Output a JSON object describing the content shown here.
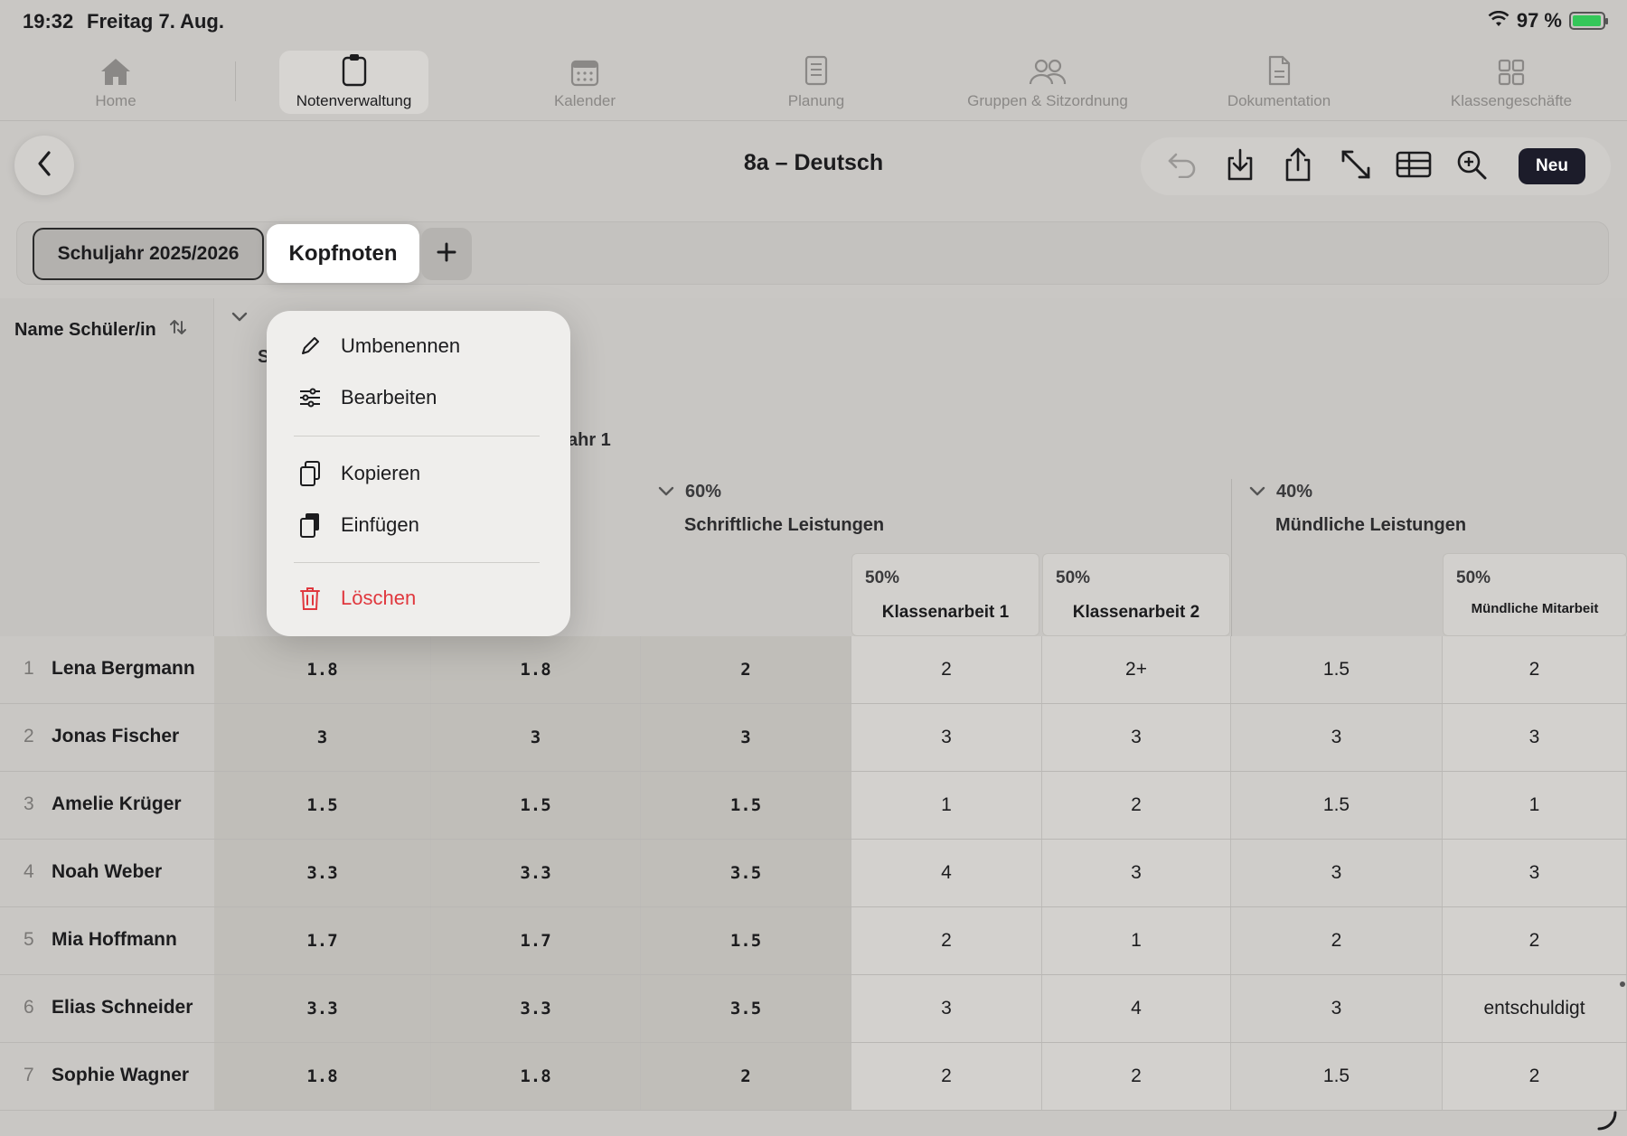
{
  "status": {
    "time": "19:32",
    "date": "Freitag 7. Aug.",
    "battery": "97 %",
    "battery_level": 0.97
  },
  "nav": {
    "items": [
      {
        "label": "Home",
        "icon": "house-icon"
      },
      {
        "label": "Notenverwaltung",
        "icon": "clipboard-icon"
      },
      {
        "label": "Kalender",
        "icon": "calendar-icon"
      },
      {
        "label": "Planung",
        "icon": "document-list-icon"
      },
      {
        "label": "Gruppen & Sitzordnung",
        "icon": "people-icon"
      },
      {
        "label": "Dokumentation",
        "icon": "document-icon"
      },
      {
        "label": "Klassengeschäfte",
        "icon": "grid-icon"
      }
    ],
    "active": "Notenverwaltung"
  },
  "header": {
    "title": "8a – Deutsch",
    "new_label": "Neu"
  },
  "tabs": {
    "year": "Schuljahr 2025/2026",
    "active": "Kopfnoten",
    "add": "+"
  },
  "grid": {
    "name_header": "Name Schüler/in",
    "partial_text": "ahr 1",
    "partial_letter": "S",
    "groups": [
      {
        "percent": "60%",
        "name": "Schriftliche Leistungen"
      },
      {
        "percent": "40%",
        "name": "Mündliche Leistungen"
      }
    ],
    "subcolumns": [
      {
        "percent": "50%",
        "name": "Klassenarbeit 1"
      },
      {
        "percent": "50%",
        "name": "Klassenarbeit 2"
      },
      {
        "percent": "50%",
        "name": "Mündliche Mitarbeit"
      }
    ],
    "rows": [
      {
        "n": "1",
        "name": "Lena Bergmann",
        "c": [
          "1.8",
          "1.8",
          "2",
          "2",
          "2+",
          "1.5",
          "2"
        ]
      },
      {
        "n": "2",
        "name": "Jonas Fischer",
        "c": [
          "3",
          "3",
          "3",
          "3",
          "3",
          "3",
          "3"
        ]
      },
      {
        "n": "3",
        "name": "Amelie Krüger",
        "c": [
          "1.5",
          "1.5",
          "1.5",
          "1",
          "2",
          "1.5",
          "1"
        ]
      },
      {
        "n": "4",
        "name": "Noah Weber",
        "c": [
          "3.3",
          "3.3",
          "3.5",
          "4",
          "3",
          "3",
          "3"
        ]
      },
      {
        "n": "5",
        "name": "Mia Hoffmann",
        "c": [
          "1.7",
          "1.7",
          "1.5",
          "2",
          "1",
          "2",
          "2"
        ]
      },
      {
        "n": "6",
        "name": "Elias Schneider",
        "c": [
          "3.3",
          "3.3",
          "3.5",
          "3",
          "4",
          "3",
          "entschuldigt"
        ]
      },
      {
        "n": "7",
        "name": "Sophie Wagner",
        "c": [
          "1.8",
          "1.8",
          "2",
          "2",
          "2",
          "1.5",
          "2"
        ]
      }
    ]
  },
  "menu": {
    "items": [
      {
        "label": "Umbenennen",
        "icon": "pencil-icon"
      },
      {
        "label": "Bearbeiten",
        "icon": "sliders-icon"
      },
      {
        "label": "Kopieren",
        "icon": "copy-icon"
      },
      {
        "label": "Einfügen",
        "icon": "paste-icon"
      },
      {
        "label": "Löschen",
        "icon": "trash-icon"
      }
    ]
  },
  "colors": {
    "accent_dark": "#1c1c2a",
    "danger": "#e0383e",
    "battery": "#34c759"
  }
}
